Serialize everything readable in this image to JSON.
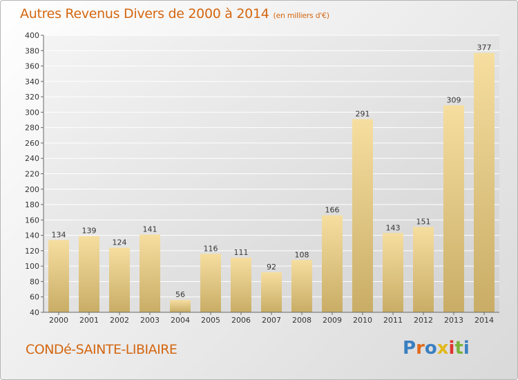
{
  "header": {
    "title": "Autres Revenus Divers de 2000 à 2014",
    "unit": "(en milliers d'€)"
  },
  "footer": {
    "city": "CONDé-SAINTE-LIBIAIRE",
    "logo": "Proxiti"
  },
  "colors": {
    "title": "#d4660f",
    "bar_light": "#f6dea0",
    "bar_dark": "#c9ad66"
  },
  "chart_data": {
    "type": "bar",
    "categories": [
      "2000",
      "2001",
      "2002",
      "2003",
      "2004",
      "2005",
      "2006",
      "2007",
      "2008",
      "2009",
      "2010",
      "2011",
      "2012",
      "2013",
      "2014"
    ],
    "values": [
      134,
      139,
      124,
      141,
      56,
      116,
      111,
      92,
      108,
      166,
      291,
      143,
      151,
      309,
      377
    ],
    "ylim": [
      40,
      400
    ],
    "yticks": [
      40,
      60,
      80,
      100,
      120,
      140,
      160,
      180,
      200,
      220,
      240,
      260,
      280,
      300,
      320,
      340,
      360,
      380,
      400
    ],
    "grid": true
  }
}
